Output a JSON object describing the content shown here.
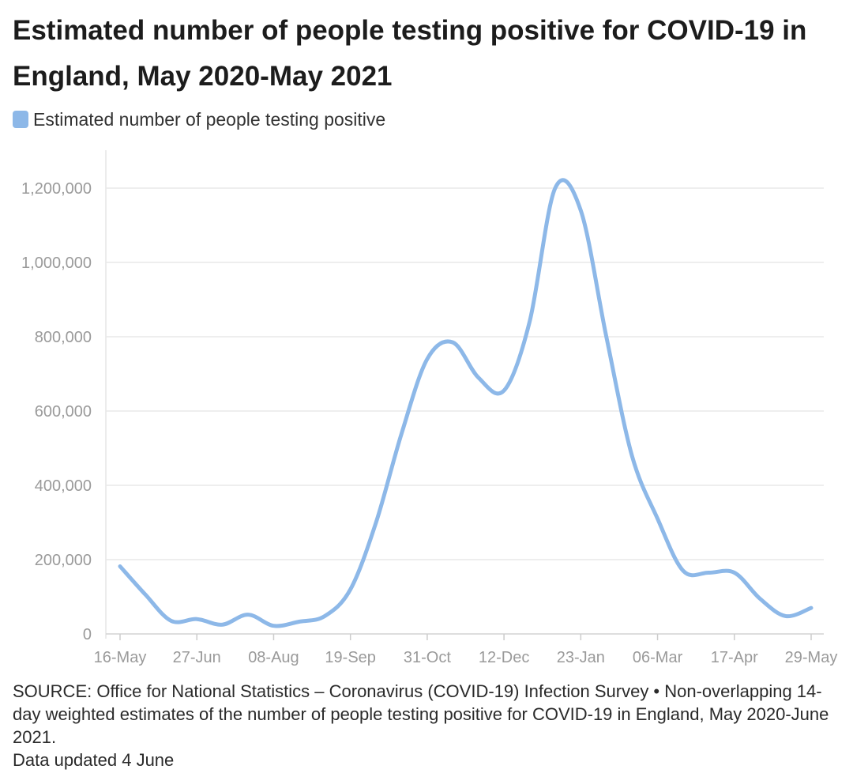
{
  "title": "Estimated number of people testing positive for COVID-19 in England, May 2020-May 2021",
  "legend": {
    "label": "Estimated number of people testing positive",
    "color": "#8db8e8"
  },
  "footer": {
    "source": "SOURCE: Office for National Statistics – Coronavirus (COVID-19) Infection Survey • Non-overlapping 14-day weighted estimates of the number of people testing positive for COVID-19 in England, May 2020-June 2021.",
    "updated": "Data updated 4 June"
  },
  "chart_data": {
    "type": "line",
    "title": "Estimated number of people testing positive for COVID-19 in England, May 2020-May 2021",
    "xlabel": "",
    "ylabel": "",
    "ylim": [
      0,
      1200000
    ],
    "yticks": [
      0,
      200000,
      400000,
      600000,
      800000,
      1000000,
      1200000
    ],
    "ytick_labels": [
      "0",
      "200,000",
      "400,000",
      "600,000",
      "800,000",
      "1,000,000",
      "1,200,000"
    ],
    "xtick_labels": [
      "16-May",
      "27-Jun",
      "08-Aug",
      "19-Sep",
      "31-Oct",
      "12-Dec",
      "23-Jan",
      "06-Mar",
      "17-Apr",
      "29-May"
    ],
    "grid": true,
    "legend_position": "top-left",
    "series": [
      {
        "name": "Estimated number of people testing positive",
        "color": "#8db8e8",
        "x": [
          "16-May",
          "30-May",
          "13-Jun",
          "27-Jun",
          "11-Jul",
          "25-Jul",
          "08-Aug",
          "22-Aug",
          "05-Sep",
          "19-Sep",
          "03-Oct",
          "17-Oct",
          "31-Oct",
          "14-Nov",
          "28-Nov",
          "12-Dec",
          "26-Dec",
          "09-Jan",
          "23-Jan",
          "06-Feb",
          "20-Feb",
          "06-Mar",
          "20-Mar",
          "03-Apr",
          "17-Apr",
          "01-May",
          "15-May",
          "29-May"
        ],
        "values": [
          182000,
          105000,
          35000,
          40000,
          25000,
          52000,
          22000,
          33000,
          48000,
          120000,
          300000,
          540000,
          740000,
          785000,
          690000,
          655000,
          840000,
          1200000,
          1140000,
          800000,
          480000,
          310000,
          170000,
          165000,
          165000,
          95000,
          48000,
          70000
        ]
      }
    ]
  }
}
